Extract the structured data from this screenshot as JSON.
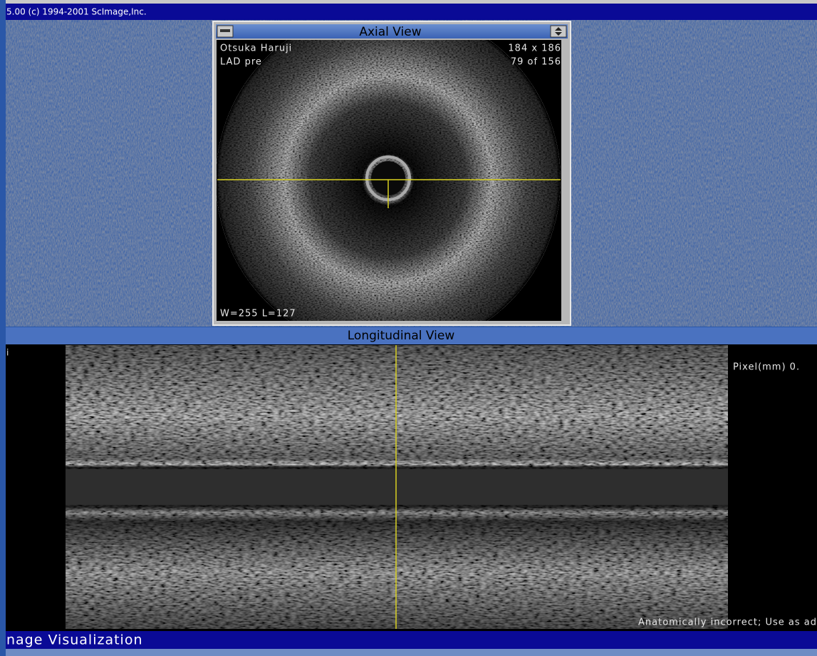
{
  "app": {
    "title_bar": "5.00 (c) 1994-2001 ScImage,Inc.",
    "status_bar": "nage Visualization"
  },
  "axial_view": {
    "title": "Axial View",
    "patient_name": "Otsuka Haruji",
    "image_size": "184 x 186",
    "series": "LAD pre",
    "frame": "79 of 156",
    "window_level": "W=255 L=127"
  },
  "longitudinal_view": {
    "title": "Longitudinal View",
    "marker": "i",
    "pixel_label": "Pixel(mm) 0.",
    "warning": "Anatomically incorrect; Use as ad"
  }
}
